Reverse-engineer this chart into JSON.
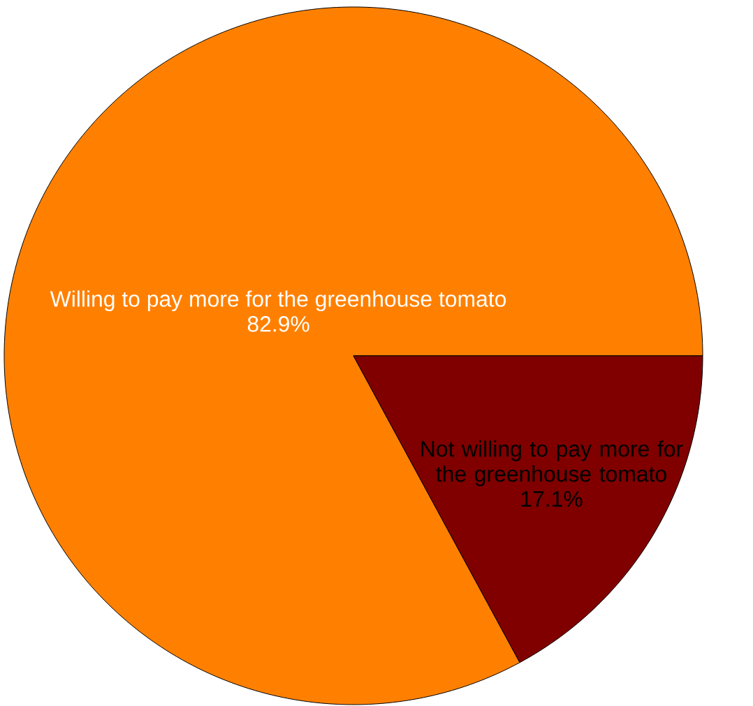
{
  "chart_data": {
    "type": "pie",
    "categories": [
      "Willing to pay more for the greenhouse tomato",
      "Not willing to pay more for the greenhouse tomato"
    ],
    "values": [
      82.9,
      17.1
    ],
    "colors": [
      "#ff8000",
      "#800000"
    ],
    "value_labels": [
      "82.9%",
      "17.1%"
    ]
  }
}
